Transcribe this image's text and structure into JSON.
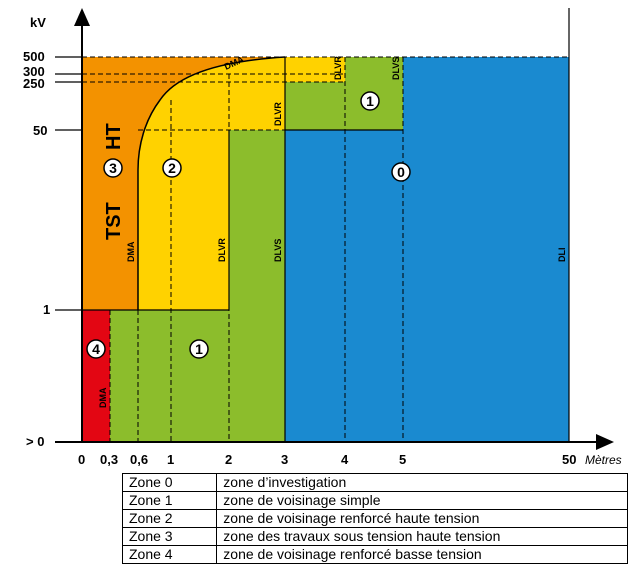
{
  "diagram": {
    "y_axis_label": "kV",
    "x_axis_unit": "Mètres",
    "y_ticks": [
      "500",
      "300",
      "250",
      "50",
      "1",
      "> 0"
    ],
    "x_ticks": [
      "0",
      "0,3",
      "0,6",
      "1",
      "2",
      "3",
      "4",
      "5",
      "50"
    ],
    "region_labels": {
      "tst": "TST",
      "ht": "HT",
      "zone3": "3",
      "zone2": "2",
      "zone1_upper": "1",
      "zone1_lower": "1",
      "zone0": "0",
      "zone4": "4"
    },
    "distance_labels": {
      "dma_curve": "DMA",
      "dlvr_top": "DLVR",
      "dlvs_top": "DLVS",
      "dlvr_mid": "DLVR",
      "dma_mid": "DMA",
      "dlvr_low": "DLVR",
      "dlvs_low": "DLVS",
      "dli": "DLI",
      "dma_low": "DMA"
    },
    "colors": {
      "zone0": "#1a8ad0",
      "zone1": "#8cbd2c",
      "zone2": "#ffd200",
      "zone3": "#f39200",
      "zone4": "#e30613"
    }
  },
  "legend_table": [
    {
      "zone": "Zone 0",
      "description": "zone d’investigation"
    },
    {
      "zone": "Zone 1",
      "description": "zone de voisinage simple"
    },
    {
      "zone": "Zone 2",
      "description": "zone de voisinage renforcé haute tension"
    },
    {
      "zone": "Zone 3",
      "description": "zone des travaux sous tension haute tension"
    },
    {
      "zone": "Zone 4",
      "description": "zone de voisinage renforcé basse tension"
    }
  ]
}
